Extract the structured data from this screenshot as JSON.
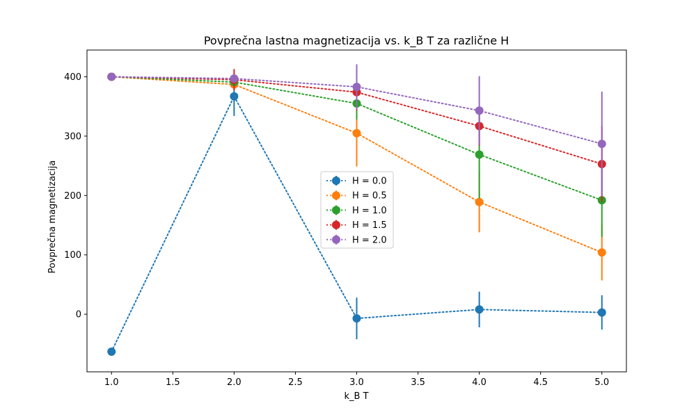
{
  "chart_data": {
    "type": "line",
    "title": "Povprečna lastna magnetizacija vs. k_B T za različne H",
    "xlabel": "k_B T",
    "ylabel": "Povprečna magnetizacija",
    "x": [
      1.0,
      2.0,
      3.0,
      4.0,
      5.0
    ],
    "xlim": [
      0.8,
      5.2
    ],
    "ylim": [
      -97,
      445
    ],
    "xticks": [
      1.0,
      1.5,
      2.0,
      2.5,
      3.0,
      3.5,
      4.0,
      4.5,
      5.0
    ],
    "xtick_labels": [
      "1.0",
      "1.5",
      "2.0",
      "2.5",
      "3.0",
      "3.5",
      "4.0",
      "4.5",
      "5.0"
    ],
    "yticks": [
      0,
      100,
      200,
      300,
      400
    ],
    "ytick_labels": [
      "0",
      "100",
      "200",
      "300",
      "400"
    ],
    "grid": false,
    "legend_position": "center",
    "line_style": "dotted",
    "markers": "circle",
    "error_bars": true,
    "series": [
      {
        "name": "H = 0.0",
        "color": "#1f77b4",
        "values": [
          -63,
          367,
          -7,
          8,
          3
        ],
        "errors": [
          0,
          33,
          35,
          30,
          29
        ]
      },
      {
        "name": "H = 0.5",
        "color": "#ff7f0e",
        "values": [
          400,
          387,
          305,
          189,
          104
        ],
        "errors": [
          0,
          5,
          56,
          51,
          47
        ]
      },
      {
        "name": "H = 1.0",
        "color": "#2ca02c",
        "values": [
          400,
          391,
          355,
          269,
          192
        ],
        "errors": [
          0,
          4,
          27,
          74,
          62
        ]
      },
      {
        "name": "H = 1.5",
        "color": "#d62728",
        "values": [
          400,
          395,
          374,
          317,
          253
        ],
        "errors": [
          0,
          18,
          31,
          33,
          64
        ]
      },
      {
        "name": "H = 2.0",
        "color": "#9467bd",
        "values": [
          400,
          397,
          383,
          343,
          287
        ],
        "errors": [
          0,
          5,
          38,
          58,
          88
        ]
      }
    ]
  }
}
